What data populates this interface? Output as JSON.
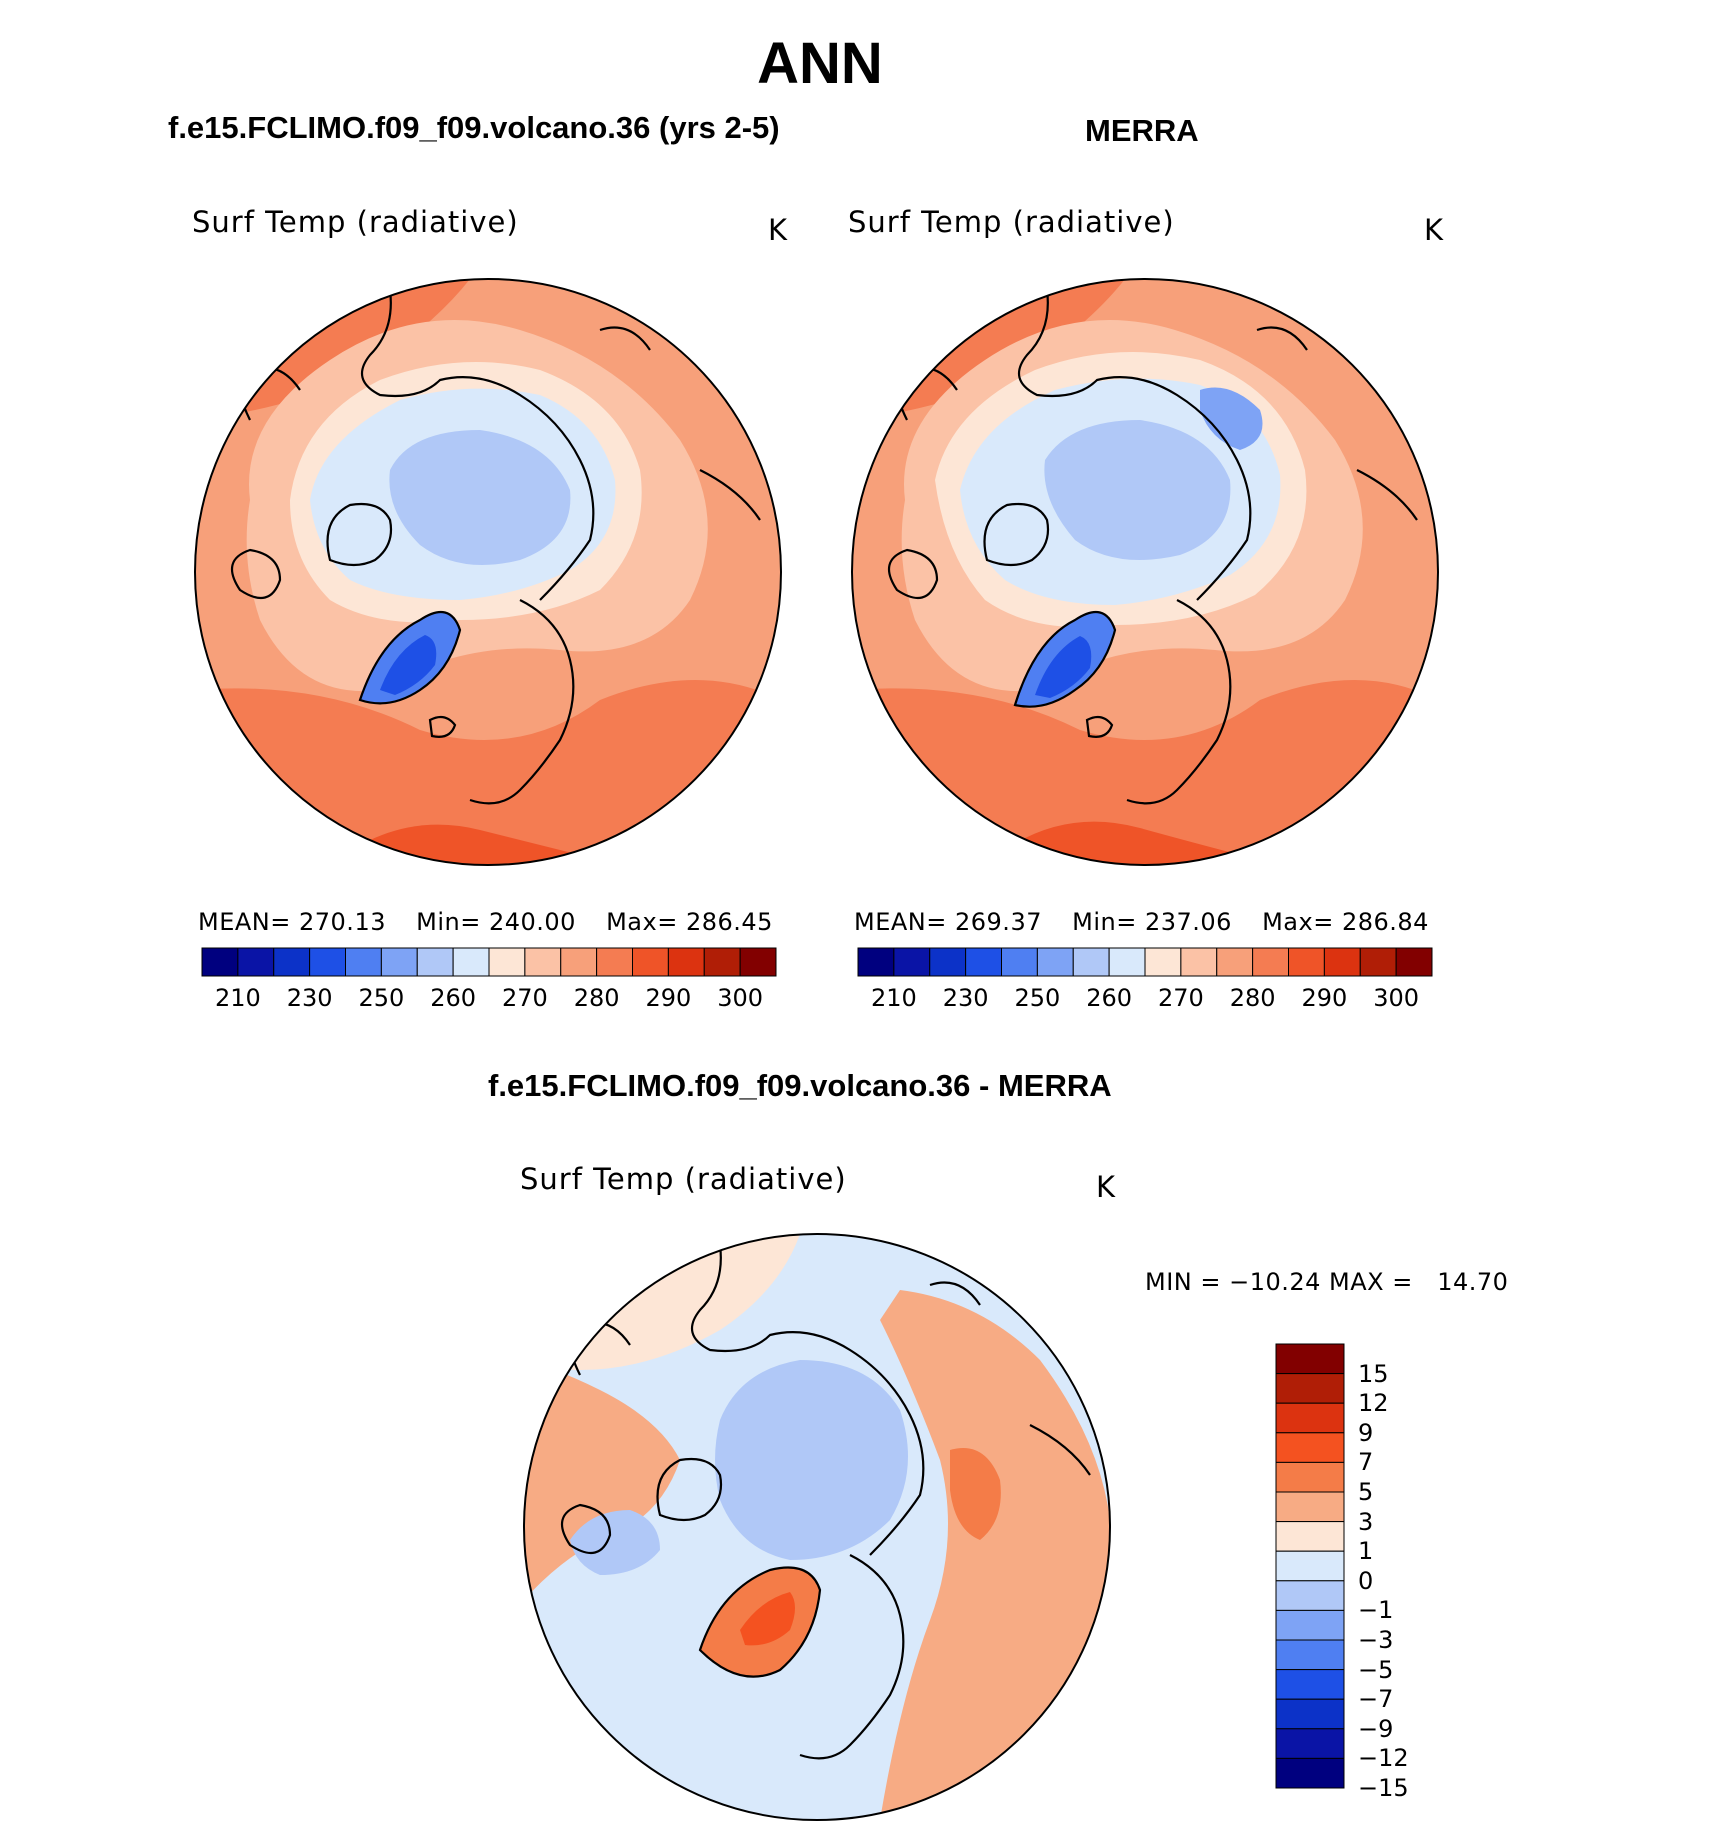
{
  "title": "ANN",
  "panels": [
    {
      "id": "model",
      "case_title": "f.e15.FCLIMO.f09_f09.volcano.36 (yrs 2-5)",
      "variable": "Surf Temp (radiative)",
      "units": "K",
      "stats": {
        "mean_label": "MEAN=",
        "mean": "270.13",
        "min_label": "Min=",
        "min": "240.00",
        "max_label": "Max=",
        "max": "286.45"
      }
    },
    {
      "id": "obs",
      "case_title": "MERRA",
      "variable": "Surf Temp (radiative)",
      "units": "K",
      "stats": {
        "mean_label": "MEAN=",
        "mean": "269.37",
        "min_label": "Min=",
        "min": "237.06",
        "max_label": "Max=",
        "max": "286.84"
      }
    }
  ],
  "diff_panel": {
    "case_title": "f.e15.FCLIMO.f09_f09.volcano.36 - MERRA",
    "variable": "Surf Temp (radiative)",
    "units": "K",
    "stats_text": "MIN = −10.24 MAX =   14.70"
  },
  "abs_colorbar": {
    "colors": [
      "#00007f",
      "#0a14a6",
      "#0c32c8",
      "#1e50e6",
      "#4f7ff2",
      "#7ea3f5",
      "#b0c8f7",
      "#d9e9fb",
      "#fde6d6",
      "#fbc2a6",
      "#f7a07a",
      "#f47c52",
      "#ef5428",
      "#dc3310",
      "#b01e06",
      "#820000"
    ],
    "tick_labels": [
      "210",
      "230",
      "250",
      "260",
      "270",
      "280",
      "290",
      "300"
    ]
  },
  "diff_colorbar": {
    "colors": [
      "#820000",
      "#b01e06",
      "#dc3310",
      "#f45220",
      "#f47c48",
      "#f7ab84",
      "#fde6d6",
      "#d9e9fb",
      "#b0c8f7",
      "#7ea3f5",
      "#4f7ff2",
      "#1e50e6",
      "#0c32c8",
      "#0a14a6",
      "#00007f"
    ],
    "tick_labels": [
      "15",
      "12",
      "9",
      "7",
      "5",
      "3",
      "1",
      "0",
      "−1",
      "−3",
      "−5",
      "−7",
      "−9",
      "−12",
      "−15"
    ]
  },
  "chart_data": {
    "type": "heatmap",
    "title": "ANN",
    "projection": "north polar stereographic",
    "variable": "Surf Temp (radiative)",
    "units": "K",
    "panels": [
      {
        "name": "f.e15.FCLIMO.f09_f09.volcano.36 (yrs 2-5)",
        "mean": 270.13,
        "min": 240.0,
        "max": 286.45
      },
      {
        "name": "MERRA",
        "mean": 269.37,
        "min": 237.06,
        "max": 286.84
      },
      {
        "name": "f.e15.FCLIMO.f09_f09.volcano.36 - MERRA",
        "min": -10.24,
        "max": 14.7
      }
    ],
    "abs_levels": [
      210,
      220,
      230,
      240,
      250,
      255,
      260,
      265,
      270,
      275,
      280,
      285,
      290,
      295,
      300
    ],
    "diff_levels": [
      -15,
      -12,
      -9,
      -7,
      -5,
      -3,
      -1,
      0,
      1,
      3,
      5,
      7,
      9,
      12,
      15
    ]
  }
}
